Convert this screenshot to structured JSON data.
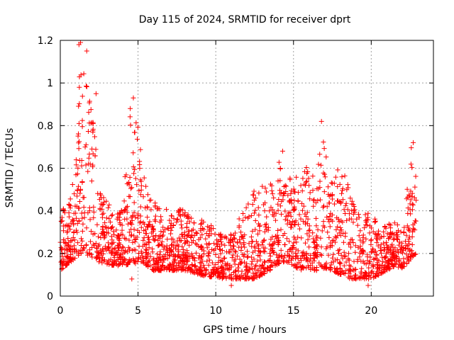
{
  "chart_data": {
    "type": "scatter",
    "title": "Day 115 of 2024, SRMTID for receiver dprt",
    "xlabel": "GPS time / hours",
    "ylabel": "SRMTID / TECUs",
    "xlim": [
      0,
      24
    ],
    "ylim": [
      0,
      1.2
    ],
    "x_ticks": [
      0,
      5,
      10,
      15,
      20
    ],
    "x_tick_labels": [
      "0",
      "5",
      "10",
      "15",
      "20"
    ],
    "y_ticks": [
      0,
      0.2,
      0.4,
      0.6,
      0.8,
      1.0,
      1.2
    ],
    "y_tick_labels": [
      "0",
      "0.2",
      "0.4",
      "0.6",
      "0.8",
      "1",
      "1.2"
    ],
    "grid": true,
    "marker": "+",
    "series": [
      {
        "name": "SRMTID",
        "color": "#ff0000",
        "envelope": {
          "x": [
            0.0,
            0.5,
            1.0,
            1.3,
            1.6,
            2.0,
            2.2,
            2.5,
            3.0,
            3.5,
            4.0,
            4.5,
            4.8,
            5.0,
            5.3,
            5.6,
            6.0,
            6.5,
            7.0,
            7.5,
            8.0,
            8.5,
            9.0,
            9.5,
            10.0,
            10.5,
            11.0,
            11.5,
            12.0,
            12.5,
            13.0,
            13.5,
            14.0,
            14.3,
            14.6,
            15.0,
            15.5,
            16.0,
            16.5,
            16.8,
            17.0,
            17.5,
            18.0,
            18.3,
            18.6,
            19.0,
            19.5,
            20.0,
            20.5,
            21.0,
            21.5,
            22.0,
            22.3,
            22.6,
            22.9
          ],
          "low": [
            0.12,
            0.15,
            0.18,
            0.2,
            0.2,
            0.18,
            0.18,
            0.16,
            0.15,
            0.14,
            0.14,
            0.15,
            0.15,
            0.16,
            0.16,
            0.14,
            0.12,
            0.12,
            0.12,
            0.12,
            0.12,
            0.11,
            0.1,
            0.09,
            0.09,
            0.08,
            0.08,
            0.08,
            0.08,
            0.08,
            0.1,
            0.12,
            0.15,
            0.16,
            0.16,
            0.14,
            0.12,
            0.12,
            0.12,
            0.13,
            0.13,
            0.12,
            0.1,
            0.1,
            0.08,
            0.08,
            0.08,
            0.08,
            0.1,
            0.12,
            0.14,
            0.13,
            0.15,
            0.18,
            0.2
          ],
          "high": [
            0.45,
            0.42,
            0.6,
            1.18,
            1.05,
            0.95,
            0.85,
            0.5,
            0.45,
            0.38,
            0.42,
            0.88,
            0.92,
            0.8,
            0.62,
            0.52,
            0.45,
            0.42,
            0.4,
            0.42,
            0.4,
            0.38,
            0.36,
            0.34,
            0.32,
            0.3,
            0.3,
            0.38,
            0.42,
            0.5,
            0.52,
            0.56,
            0.62,
            0.68,
            0.6,
            0.58,
            0.55,
            0.65,
            0.56,
            0.82,
            0.72,
            0.55,
            0.62,
            0.62,
            0.5,
            0.4,
            0.38,
            0.4,
            0.33,
            0.33,
            0.36,
            0.3,
            0.5,
            0.72,
            0.55
          ]
        },
        "notable_points": [
          {
            "x": 1.2,
            "y": 1.18
          },
          {
            "x": 1.3,
            "y": 1.19
          },
          {
            "x": 1.7,
            "y": 1.15
          },
          {
            "x": 4.7,
            "y": 0.93
          },
          {
            "x": 2.3,
            "y": 0.95
          },
          {
            "x": 4.5,
            "y": 0.88
          },
          {
            "x": 16.8,
            "y": 0.82
          },
          {
            "x": 22.7,
            "y": 0.72
          },
          {
            "x": 14.3,
            "y": 0.68
          },
          {
            "x": 4.6,
            "y": 0.08
          },
          {
            "x": 11.0,
            "y": 0.05
          },
          {
            "x": 19.8,
            "y": 0.05
          }
        ]
      }
    ]
  }
}
